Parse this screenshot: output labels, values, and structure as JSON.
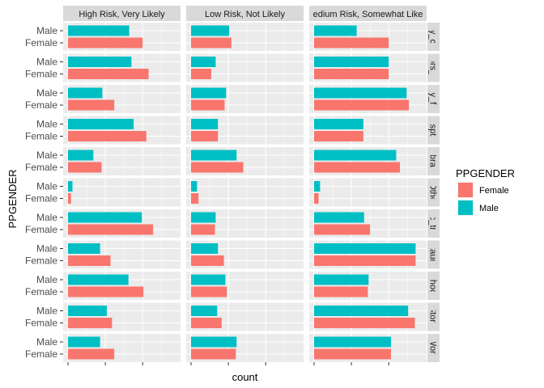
{
  "chart_data": {
    "type": "bar",
    "orientation": "horizontal",
    "facet_columns": [
      "High Risk, Very Likely",
      "Low Risk, Not Likely",
      "edium Risk, Somewhat Like"
    ],
    "facet_rows": [
      "ay_ca",
      "tors_o",
      "ily_fri",
      "ospta",
      "ibrar",
      "Othe",
      "lic_tra",
      "staura",
      "chool",
      "Store",
      "Work"
    ],
    "categories": [
      "Male",
      "Female"
    ],
    "ylabel": "PPGENDER",
    "xlabel": "count",
    "grid": true,
    "xlim": [
      0,
      140
    ],
    "legend": {
      "title": "PPGENDER",
      "position": "right",
      "items": [
        {
          "name": "Female",
          "color": "#F8766D"
        },
        {
          "name": "Male",
          "color": "#00BFC4"
        }
      ]
    },
    "series": [
      {
        "name": "Female",
        "color": "#F8766D",
        "values": [
          [
            100,
            54,
            100
          ],
          [
            108,
            27,
            100
          ],
          [
            62,
            45,
            127
          ],
          [
            105,
            36,
            66
          ],
          [
            45,
            70,
            115
          ],
          [
            4,
            10,
            6
          ],
          [
            114,
            32,
            75
          ],
          [
            57,
            44,
            136
          ],
          [
            101,
            48,
            72
          ],
          [
            59,
            41,
            135
          ],
          [
            62,
            60,
            103
          ]
        ]
      },
      {
        "name": "Male",
        "color": "#00BFC4",
        "values": [
          [
            82,
            51,
            57
          ],
          [
            85,
            33,
            100
          ],
          [
            46,
            47,
            124
          ],
          [
            88,
            36,
            66
          ],
          [
            34,
            61,
            110
          ],
          [
            6,
            8,
            8
          ],
          [
            99,
            33,
            67
          ],
          [
            43,
            36,
            136
          ],
          [
            81,
            46,
            73
          ],
          [
            52,
            35,
            126
          ],
          [
            43,
            61,
            103
          ]
        ]
      }
    ]
  }
}
